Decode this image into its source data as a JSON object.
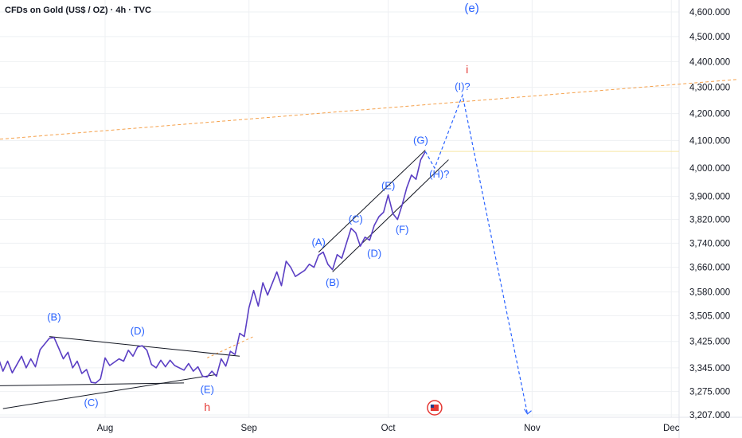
{
  "chart_title": "CFDs on Gold (US$ / OZ) · 4h · TVC",
  "chart_data": {
    "type": "line",
    "title": "CFDs on Gold (US$ / OZ) · 4h · TVC",
    "y_ticks": [
      "4,600.000",
      "4,500.000",
      "4,400.000",
      "4,300.000",
      "4,200.000",
      "4,100.000",
      "4,000.000",
      "3,900.000",
      "3,820.000",
      "3,740.000",
      "3,660.000",
      "3,580.000",
      "3,505.000",
      "3,425.000",
      "3,345.000",
      "3,275.000",
      "3,207.000"
    ],
    "x_ticks": [
      "Aug",
      "Sep",
      "Oct",
      "Nov",
      "Dec"
    ],
    "price_series": [
      {
        "date": "2025-07-01",
        "v": 3338
      },
      {
        "date": "2025-07-02",
        "v": 3348
      },
      {
        "date": "2025-07-03",
        "v": 3325
      },
      {
        "date": "2025-07-04",
        "v": 3370
      },
      {
        "date": "2025-07-05",
        "v": 3342
      },
      {
        "date": "2025-07-07",
        "v": 3362
      },
      {
        "date": "2025-07-08",
        "v": 3330
      },
      {
        "date": "2025-07-09",
        "v": 3375
      },
      {
        "date": "2025-07-10",
        "v": 3335
      },
      {
        "date": "2025-07-11",
        "v": 3365
      },
      {
        "date": "2025-07-12",
        "v": 3330
      },
      {
        "date": "2025-07-14",
        "v": 3380
      },
      {
        "date": "2025-07-15",
        "v": 3345
      },
      {
        "date": "2025-07-16",
        "v": 3372
      },
      {
        "date": "2025-07-17",
        "v": 3348
      },
      {
        "date": "2025-07-18",
        "v": 3400
      },
      {
        "date": "2025-07-20",
        "v": 3435
      },
      {
        "date": "2025-07-21",
        "v": 3437
      },
      {
        "date": "2025-07-22",
        "v": 3405
      },
      {
        "date": "2025-07-23",
        "v": 3372
      },
      {
        "date": "2025-07-24",
        "v": 3392
      },
      {
        "date": "2025-07-25",
        "v": 3345
      },
      {
        "date": "2025-07-26",
        "v": 3365
      },
      {
        "date": "2025-07-27",
        "v": 3328
      },
      {
        "date": "2025-07-28",
        "v": 3340
      },
      {
        "date": "2025-07-29",
        "v": 3302
      },
      {
        "date": "2025-07-30",
        "v": 3300
      },
      {
        "date": "2025-07-31",
        "v": 3312
      },
      {
        "date": "2025-08-01",
        "v": 3375
      },
      {
        "date": "2025-08-02",
        "v": 3352
      },
      {
        "date": "2025-08-04",
        "v": 3372
      },
      {
        "date": "2025-08-05",
        "v": 3365
      },
      {
        "date": "2025-08-06",
        "v": 3398
      },
      {
        "date": "2025-08-07",
        "v": 3380
      },
      {
        "date": "2025-08-08",
        "v": 3408
      },
      {
        "date": "2025-08-09",
        "v": 3412
      },
      {
        "date": "2025-08-10",
        "v": 3398
      },
      {
        "date": "2025-08-11",
        "v": 3355
      },
      {
        "date": "2025-08-12",
        "v": 3345
      },
      {
        "date": "2025-08-13",
        "v": 3368
      },
      {
        "date": "2025-08-14",
        "v": 3348
      },
      {
        "date": "2025-08-15",
        "v": 3368
      },
      {
        "date": "2025-08-16",
        "v": 3352
      },
      {
        "date": "2025-08-18",
        "v": 3338
      },
      {
        "date": "2025-08-19",
        "v": 3358
      },
      {
        "date": "2025-08-20",
        "v": 3335
      },
      {
        "date": "2025-08-21",
        "v": 3348
      },
      {
        "date": "2025-08-22",
        "v": 3320
      },
      {
        "date": "2025-08-23",
        "v": 3318
      },
      {
        "date": "2025-08-24",
        "v": 3335
      },
      {
        "date": "2025-08-25",
        "v": 3320
      },
      {
        "date": "2025-08-26",
        "v": 3372
      },
      {
        "date": "2025-08-27",
        "v": 3350
      },
      {
        "date": "2025-08-28",
        "v": 3395
      },
      {
        "date": "2025-08-29",
        "v": 3385
      },
      {
        "date": "2025-08-30",
        "v": 3450
      },
      {
        "date": "2025-08-31",
        "v": 3440
      },
      {
        "date": "2025-09-01",
        "v": 3530
      },
      {
        "date": "2025-09-02",
        "v": 3585
      },
      {
        "date": "2025-09-03",
        "v": 3535
      },
      {
        "date": "2025-09-04",
        "v": 3610
      },
      {
        "date": "2025-09-05",
        "v": 3570
      },
      {
        "date": "2025-09-07",
        "v": 3645
      },
      {
        "date": "2025-09-08",
        "v": 3600
      },
      {
        "date": "2025-09-09",
        "v": 3680
      },
      {
        "date": "2025-09-10",
        "v": 3660
      },
      {
        "date": "2025-09-11",
        "v": 3630
      },
      {
        "date": "2025-09-12",
        "v": 3640
      },
      {
        "date": "2025-09-13",
        "v": 3650
      },
      {
        "date": "2025-09-14",
        "v": 3670
      },
      {
        "date": "2025-09-15",
        "v": 3660
      },
      {
        "date": "2025-09-16",
        "v": 3700
      },
      {
        "date": "2025-09-17",
        "v": 3710
      },
      {
        "date": "2025-09-18",
        "v": 3670
      },
      {
        "date": "2025-09-19",
        "v": 3652
      },
      {
        "date": "2025-09-20",
        "v": 3702
      },
      {
        "date": "2025-09-21",
        "v": 3690
      },
      {
        "date": "2025-09-22",
        "v": 3740
      },
      {
        "date": "2025-09-23",
        "v": 3790
      },
      {
        "date": "2025-09-24",
        "v": 3775
      },
      {
        "date": "2025-09-25",
        "v": 3730
      },
      {
        "date": "2025-09-26",
        "v": 3760
      },
      {
        "date": "2025-09-27",
        "v": 3750
      },
      {
        "date": "2025-09-28",
        "v": 3800
      },
      {
        "date": "2025-09-29",
        "v": 3830
      },
      {
        "date": "2025-09-30",
        "v": 3845
      },
      {
        "date": "2025-10-01",
        "v": 3905
      },
      {
        "date": "2025-10-02",
        "v": 3840
      },
      {
        "date": "2025-10-03",
        "v": 3820
      },
      {
        "date": "2025-10-04",
        "v": 3870
      },
      {
        "date": "2025-10-05",
        "v": 3930
      },
      {
        "date": "2025-10-06",
        "v": 3975
      },
      {
        "date": "2025-10-07",
        "v": 3960
      },
      {
        "date": "2025-10-08",
        "v": 4030
      },
      {
        "date": "2025-10-09",
        "v": 4060
      }
    ],
    "projection": [
      {
        "date": "2025-10-09",
        "v": 4060
      },
      {
        "date": "2025-10-11",
        "v": 4000
      },
      {
        "date": "2025-10-17",
        "v": 4270
      },
      {
        "date": "2025-10-31",
        "v": 3210
      }
    ],
    "orange_trend": [
      {
        "date": "2025-06-25",
        "v": 4085
      },
      {
        "date": "2025-12-15",
        "v": 4330
      }
    ],
    "wave_labels": [
      {
        "text": "(B)",
        "date": "2025-07-21",
        "v": 3490,
        "color": "blue"
      },
      {
        "text": "(D)",
        "date": "2025-08-08",
        "v": 3447,
        "color": "blue"
      },
      {
        "text": "(C)",
        "date": "2025-07-29",
        "v": 3232,
        "color": "blue"
      },
      {
        "text": "(E)",
        "date": "2025-08-23",
        "v": 3270,
        "color": "blue"
      },
      {
        "text": "h",
        "date": "2025-08-23",
        "v": 3218,
        "color": "red"
      },
      {
        "text": "(A)",
        "date": "2025-09-16",
        "v": 3732,
        "color": "blue"
      },
      {
        "text": "(B)",
        "date": "2025-09-19",
        "v": 3600,
        "color": "blue"
      },
      {
        "text": "(C)",
        "date": "2025-09-24",
        "v": 3810,
        "color": "blue"
      },
      {
        "text": "(D)",
        "date": "2025-09-28",
        "v": 3695,
        "color": "blue"
      },
      {
        "text": "(E)",
        "date": "2025-10-01",
        "v": 3925,
        "color": "blue"
      },
      {
        "text": "(F)",
        "date": "2025-10-04",
        "v": 3775,
        "color": "blue"
      },
      {
        "text": "(G)",
        "date": "2025-10-08",
        "v": 4088,
        "color": "blue"
      },
      {
        "text": "(H)?",
        "date": "2025-10-12",
        "v": 3966,
        "color": "blue"
      },
      {
        "text": "(I)?",
        "date": "2025-10-17",
        "v": 4290,
        "color": "blue"
      },
      {
        "text": "i",
        "date": "2025-10-18",
        "v": 4355,
        "color": "red"
      },
      {
        "text": "(e)",
        "date": "2025-10-19",
        "v": 4600,
        "color": "blue_big"
      }
    ],
    "grid": true,
    "legend": "none"
  },
  "colors": {
    "price": "#5b3fc4",
    "wave_blue": "#2962ff",
    "wave_red": "#e53935",
    "trend_orange": "#f5a04a",
    "grid": "#eef0f3",
    "axis_text": "#131722"
  }
}
